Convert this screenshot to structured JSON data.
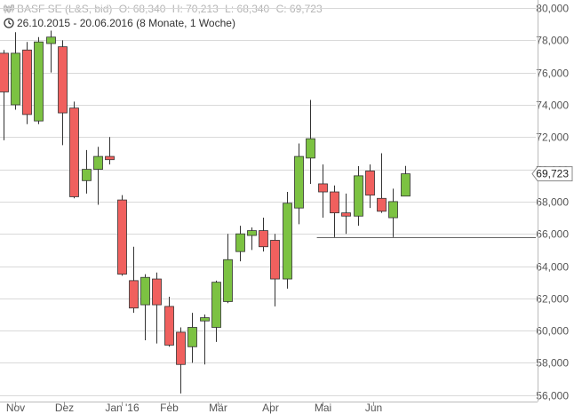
{
  "header": {
    "instrument": "BASF SE (L&S, bid)",
    "open_label": "O:",
    "open_value": "68,340",
    "high_label": "H:",
    "high_value": "70,213",
    "low_label": "L:",
    "low_value": "68,340",
    "close_label": "C:",
    "close_value": "69,723",
    "period": "26.10.2015 - 20.06.2016 (8 Monate, 1 Woche)"
  },
  "colors": {
    "up": "#7cc242",
    "down": "#f0605e",
    "wick": "#333333",
    "grid": "#d9d9d9",
    "axis_text": "#555555",
    "line": "#666666"
  },
  "chart_data": {
    "type": "candlestick",
    "y_axis_side": "right",
    "ylim": [
      55600,
      80500
    ],
    "y_ticks": [
      56000,
      58000,
      60000,
      62000,
      64000,
      66000,
      68000,
      70000,
      72000,
      74000,
      76000,
      78000,
      80000
    ],
    "y_tick_labels": [
      "56,000",
      "58,000",
      "60,000",
      "62,000",
      "64,000",
      "66,000",
      "68,000",
      "70,000",
      "72,000",
      "74,000",
      "76,000",
      "78,000",
      "80,000"
    ],
    "x_labels": [
      {
        "label": "Nov",
        "date": "2015-11-02"
      },
      {
        "label": "Dez",
        "date": "2015-12-01"
      },
      {
        "label": "Jan '16",
        "date": "2016-01-04"
      },
      {
        "label": "Feb",
        "date": "2016-02-01"
      },
      {
        "label": "Mär",
        "date": "2016-03-01"
      },
      {
        "label": "Apr",
        "date": "2016-04-01"
      },
      {
        "label": "Mai",
        "date": "2016-05-02"
      },
      {
        "label": "Jun",
        "date": "2016-06-01"
      }
    ],
    "candles": [
      {
        "date": "2015-10-26",
        "open": 77200,
        "high": 77400,
        "low": 71800,
        "close": 74800
      },
      {
        "date": "2015-11-02",
        "open": 74000,
        "high": 78500,
        "low": 73700,
        "close": 77200
      },
      {
        "date": "2015-11-09",
        "open": 77400,
        "high": 77900,
        "low": 72800,
        "close": 73400
      },
      {
        "date": "2015-11-16",
        "open": 73000,
        "high": 78200,
        "low": 72800,
        "close": 77900
      },
      {
        "date": "2015-11-23",
        "open": 77800,
        "high": 78600,
        "low": 76000,
        "close": 78200
      },
      {
        "date": "2015-11-30",
        "open": 77600,
        "high": 78000,
        "low": 71500,
        "close": 73500
      },
      {
        "date": "2015-12-07",
        "open": 73800,
        "high": 74200,
        "low": 68200,
        "close": 68300
      },
      {
        "date": "2015-12-14",
        "open": 69300,
        "high": 71200,
        "low": 68500,
        "close": 70000
      },
      {
        "date": "2015-12-21",
        "open": 70000,
        "high": 71400,
        "low": 67800,
        "close": 70800
      },
      {
        "date": "2015-12-28",
        "open": 70800,
        "high": 72000,
        "low": 70300,
        "close": 70600
      },
      {
        "date": "2016-01-04",
        "open": 68100,
        "high": 68400,
        "low": 63400,
        "close": 63500
      },
      {
        "date": "2016-01-11",
        "open": 63100,
        "high": 65200,
        "low": 61100,
        "close": 61400
      },
      {
        "date": "2016-01-18",
        "open": 61600,
        "high": 63500,
        "low": 59400,
        "close": 63300
      },
      {
        "date": "2016-01-25",
        "open": 63200,
        "high": 63600,
        "low": 59200,
        "close": 61600
      },
      {
        "date": "2016-02-01",
        "open": 61500,
        "high": 62100,
        "low": 59000,
        "close": 59100
      },
      {
        "date": "2016-02-08",
        "open": 59900,
        "high": 60200,
        "low": 56100,
        "close": 57900
      },
      {
        "date": "2016-02-15",
        "open": 59000,
        "high": 61100,
        "low": 58000,
        "close": 60200
      },
      {
        "date": "2016-02-22",
        "open": 60600,
        "high": 61000,
        "low": 57900,
        "close": 60800
      },
      {
        "date": "2016-02-29",
        "open": 60200,
        "high": 63100,
        "low": 59300,
        "close": 63000
      },
      {
        "date": "2016-03-07",
        "open": 61800,
        "high": 66000,
        "low": 61700,
        "close": 64400
      },
      {
        "date": "2016-03-14",
        "open": 64900,
        "high": 66500,
        "low": 64300,
        "close": 66000
      },
      {
        "date": "2016-03-21",
        "open": 65900,
        "high": 66400,
        "low": 65000,
        "close": 66200
      },
      {
        "date": "2016-03-28",
        "open": 66200,
        "high": 67000,
        "low": 64900,
        "close": 65200
      },
      {
        "date": "2016-04-04",
        "open": 65600,
        "high": 66000,
        "low": 61500,
        "close": 63200
      },
      {
        "date": "2016-04-11",
        "open": 63200,
        "high": 68600,
        "low": 62600,
        "close": 67900
      },
      {
        "date": "2016-04-18",
        "open": 67600,
        "high": 71600,
        "low": 66600,
        "close": 70800
      },
      {
        "date": "2016-04-25",
        "open": 70700,
        "high": 74300,
        "low": 69100,
        "close": 71900
      },
      {
        "date": "2016-05-02",
        "open": 69100,
        "high": 70300,
        "low": 67000,
        "close": 68600
      },
      {
        "date": "2016-05-09",
        "open": 68600,
        "high": 69000,
        "low": 65800,
        "close": 67300
      },
      {
        "date": "2016-05-16",
        "open": 67300,
        "high": 68500,
        "low": 66000,
        "close": 67100
      },
      {
        "date": "2016-05-23",
        "open": 67100,
        "high": 70200,
        "low": 66500,
        "close": 69600
      },
      {
        "date": "2016-05-30",
        "open": 69900,
        "high": 70300,
        "low": 67600,
        "close": 68400
      },
      {
        "date": "2016-06-06",
        "open": 68200,
        "high": 71000,
        "low": 67300,
        "close": 67400
      },
      {
        "date": "2016-06-13",
        "open": 67000,
        "high": 68800,
        "low": 65800,
        "close": 68000
      },
      {
        "date": "2016-06-20",
        "open": 68340,
        "high": 70213,
        "low": 68340,
        "close": 69723
      }
    ],
    "last_price_label": "69,723",
    "support_line": {
      "value": 65800,
      "from_date": "2016-05-02"
    }
  }
}
